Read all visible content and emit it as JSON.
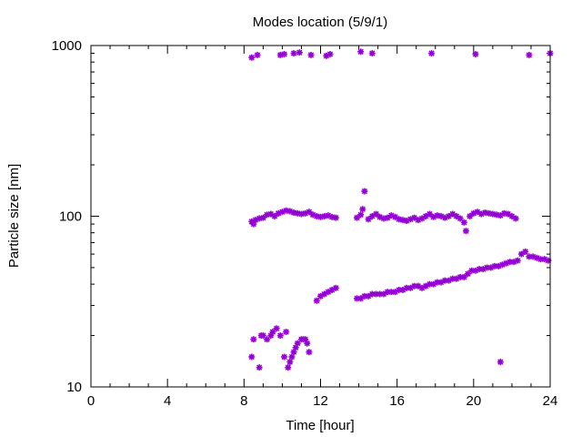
{
  "chart_data": {
    "type": "scatter",
    "title": "Modes location (5/9/1)",
    "xlabel": "Time [hour]",
    "ylabel": "Particle size [nm]",
    "xlim": [
      0,
      24
    ],
    "ylim": [
      10,
      1000
    ],
    "y_scale": "log",
    "x_ticks": [
      0,
      4,
      8,
      12,
      16,
      20,
      24
    ],
    "x_tick_labels": [
      "0",
      "4",
      "8",
      "12",
      "16",
      "20",
      "24"
    ],
    "y_ticks": [
      10,
      100,
      1000
    ],
    "y_tick_labels": [
      "10",
      "100",
      "1000"
    ],
    "grid": false,
    "legend": "none",
    "marker": "star",
    "series": [
      {
        "color": "#9400d3",
        "x": [
          8.4,
          8.7,
          9.9,
          10.1,
          10.6,
          10.9,
          11.5,
          12.3,
          12.5,
          14.1,
          14.7,
          17.8,
          20.1,
          22.9,
          24.0,
          8.4,
          8.5,
          8.6,
          8.8,
          9.0,
          9.2,
          9.4,
          9.6,
          9.8,
          10.0,
          10.2,
          10.4,
          10.6,
          10.8,
          11.0,
          11.2,
          11.4,
          11.6,
          11.8,
          12.0,
          12.2,
          12.4,
          12.6,
          12.8,
          13.9,
          14.1,
          14.2,
          14.3,
          14.5,
          14.7,
          14.9,
          15.1,
          15.3,
          15.5,
          15.7,
          15.9,
          16.1,
          16.3,
          16.5,
          16.7,
          16.9,
          17.1,
          17.3,
          17.5,
          17.7,
          17.9,
          18.1,
          18.3,
          18.5,
          18.7,
          18.9,
          19.1,
          19.3,
          19.5,
          19.6,
          19.8,
          20.0,
          20.2,
          20.4,
          20.6,
          20.8,
          21.0,
          21.2,
          21.4,
          21.6,
          21.8,
          22.0,
          22.2,
          11.8,
          12.0,
          12.2,
          12.4,
          12.6,
          12.8,
          13.9,
          14.1,
          14.3,
          14.5,
          14.7,
          14.9,
          15.1,
          15.3,
          15.5,
          15.7,
          15.9,
          16.1,
          16.3,
          16.5,
          16.7,
          16.9,
          17.1,
          17.3,
          17.5,
          17.7,
          17.9,
          18.1,
          18.3,
          18.5,
          18.7,
          18.9,
          19.1,
          19.3,
          19.5,
          19.7,
          19.9,
          20.1,
          20.3,
          20.5,
          20.7,
          20.9,
          21.1,
          21.3,
          21.5,
          21.7,
          21.9,
          22.1,
          22.3,
          22.5,
          22.7,
          22.9,
          23.1,
          23.3,
          23.5,
          23.7,
          23.9,
          8.4,
          8.5,
          8.8,
          8.9,
          9.0,
          9.2,
          9.4,
          9.5,
          9.7,
          9.9,
          10.1,
          10.2,
          10.3,
          10.4,
          10.5,
          10.6,
          10.7,
          10.8,
          11.0,
          11.1,
          11.2,
          11.3,
          11.4,
          21.4
        ],
        "y": [
          850,
          880,
          880,
          890,
          900,
          910,
          880,
          870,
          890,
          920,
          900,
          900,
          890,
          880,
          900,
          93,
          90,
          95,
          97,
          98,
          102,
          103,
          100,
          104,
          106,
          108,
          107,
          105,
          104,
          103,
          104,
          106,
          102,
          100,
          99,
          100,
          101,
          99,
          98,
          98,
          102,
          110,
          140,
          96,
          100,
          103,
          99,
          97,
          98,
          101,
          99,
          96,
          95,
          94,
          96,
          98,
          95,
          97,
          100,
          103,
          99,
          101,
          100,
          98,
          100,
          103,
          100,
          97,
          92,
          82,
          100,
          104,
          106,
          103,
          105,
          104,
          103,
          102,
          101,
          104,
          103,
          100,
          97,
          32,
          34,
          35,
          36,
          37,
          38,
          33,
          33,
          34,
          34,
          35,
          35,
          35,
          35,
          36,
          36,
          36,
          37,
          37,
          38,
          38,
          39,
          39,
          38,
          39,
          40,
          40,
          41,
          41,
          42,
          42,
          43,
          43,
          44,
          44,
          46,
          48,
          48,
          49,
          49,
          50,
          50,
          51,
          51,
          52,
          53,
          54,
          54,
          55,
          60,
          62,
          58,
          58,
          57,
          56,
          56,
          55,
          15,
          19,
          13,
          20,
          20,
          19,
          20,
          21,
          22,
          20,
          15,
          21,
          13,
          14,
          15,
          16,
          17,
          18,
          19,
          19,
          19,
          18,
          16,
          14
        ]
      }
    ]
  }
}
